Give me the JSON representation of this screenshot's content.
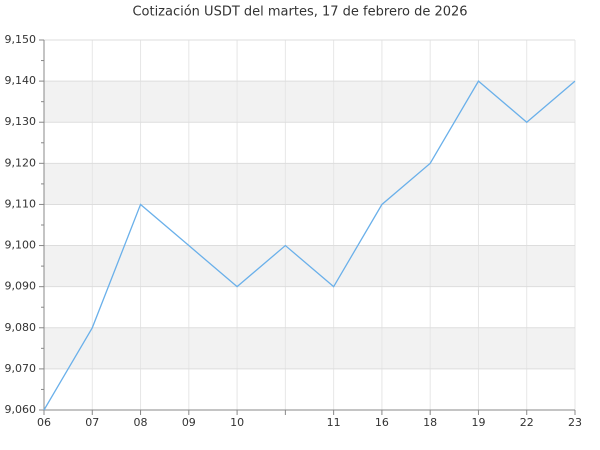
{
  "chart_data": {
    "type": "line",
    "title": "Cotización USDT del martes, 17 de febrero de 2026",
    "categories": [
      "06",
      "07",
      "08",
      "09",
      "10",
      null,
      "11",
      "16",
      "18",
      "19",
      "22",
      "23"
    ],
    "series": [
      {
        "name": "USDT",
        "color": "#6ab0ea",
        "values": [
          9.06,
          9.08,
          9.11,
          9.1,
          9.09,
          9.1,
          9.09,
          9.11,
          9.12,
          9.14,
          9.13,
          9.14
        ]
      }
    ],
    "ylim": [
      9.06,
      9.15
    ],
    "yticks": [
      {
        "value": 9.06,
        "label": "9,060"
      },
      {
        "value": 9.07,
        "label": "9,070"
      },
      {
        "value": 9.08,
        "label": "9,080"
      },
      {
        "value": 9.09,
        "label": "9,090"
      },
      {
        "value": 9.1,
        "label": "9,100"
      },
      {
        "value": 9.11,
        "label": "9,110"
      },
      {
        "value": 9.12,
        "label": "9,120"
      },
      {
        "value": 9.13,
        "label": "9,130"
      },
      {
        "value": 9.14,
        "label": "9,140"
      },
      {
        "value": 9.15,
        "label": "9,150"
      }
    ],
    "grid": true
  }
}
